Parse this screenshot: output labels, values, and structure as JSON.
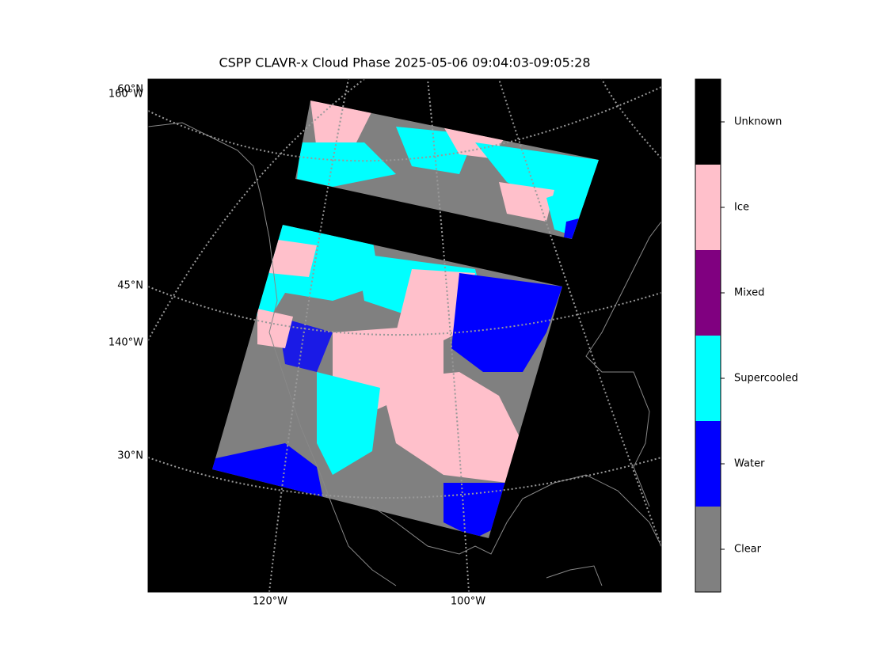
{
  "title": "CSPP CLAVR-x Cloud Phase 2025-05-06 09:04:03-09:05:28",
  "map": {
    "lat_labels": [
      "60°N",
      "45°N",
      "30°N"
    ],
    "lon_labels_left": [
      "160°W",
      "140°W"
    ],
    "lon_labels_bottom": [
      "120°W",
      "100°W"
    ]
  },
  "colorbar": {
    "classes": [
      {
        "label": "Unknown",
        "color": "#000000"
      },
      {
        "label": "Ice",
        "color": "#ffc0cb"
      },
      {
        "label": "Mixed",
        "color": "#800080"
      },
      {
        "label": "Supercooled",
        "color": "#00ffff"
      },
      {
        "label": "Water",
        "color": "#0000ff"
      },
      {
        "label": "Clear",
        "color": "#808080"
      }
    ]
  }
}
